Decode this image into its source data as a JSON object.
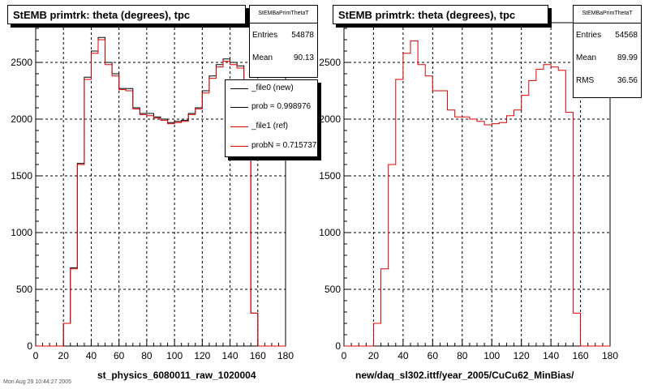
{
  "charts": [
    {
      "title": "StEMB primtrk: theta (degrees), tpc",
      "xlabel": "st_physics_6080011_raw_1020004",
      "stats": {
        "name": "StEMBaPrimThetaT",
        "rows": [
          {
            "key": "Entries",
            "value": "54878"
          },
          {
            "key": "Mean",
            "value": "90.13"
          }
        ]
      },
      "legend": [
        {
          "label": "_file0 (new)",
          "color": "#000000"
        },
        {
          "label": "prob = 0.998976",
          "color": "#000000"
        },
        {
          "label": "_file1 (ref)",
          "color": "#dd0000"
        },
        {
          "label": "probN = 0.715737",
          "color": "#dd0000"
        }
      ]
    },
    {
      "title": "StEMB primtrk: theta (degrees), tpc",
      "xlabel": "new/daq_sl302.ittf/year_2005/CuCu62_MinBias/",
      "stats": {
        "name": "StEMBaPrimThetaT",
        "rows": [
          {
            "key": "Entries",
            "value": "54568"
          },
          {
            "key": "Mean",
            "value": "89.99"
          },
          {
            "key": "RMS",
            "value": "36.56"
          }
        ]
      },
      "legend": []
    }
  ],
  "footer": "Mon Aug 29 10:44:27 2005",
  "colors": {
    "new": "#000000",
    "ref": "#dd0000",
    "grid": "#000000"
  },
  "chart_data": [
    {
      "type": "line",
      "title": "StEMB primtrk: theta (degrees), tpc",
      "xlabel": "st_physics_6080011_raw_1020004",
      "ylabel": "",
      "xlim": [
        0,
        180
      ],
      "ylim": [
        0,
        2850
      ],
      "xticks": [
        0,
        20,
        40,
        60,
        80,
        100,
        120,
        140,
        160,
        180
      ],
      "yticks": [
        0,
        500,
        1000,
        1500,
        2000,
        2500
      ],
      "grid": true,
      "legend_position": "top-right",
      "bin_width": 5,
      "x": [
        2.5,
        7.5,
        12.5,
        17.5,
        22.5,
        27.5,
        32.5,
        37.5,
        42.5,
        47.5,
        52.5,
        57.5,
        62.5,
        67.5,
        72.5,
        77.5,
        82.5,
        87.5,
        92.5,
        97.5,
        102.5,
        107.5,
        112.5,
        117.5,
        122.5,
        127.5,
        132.5,
        137.5,
        142.5,
        147.5,
        152.5,
        157.5,
        162.5,
        167.5,
        172.5,
        177.5
      ],
      "series": [
        {
          "name": "_file0 (new)",
          "values": [
            0,
            0,
            0,
            0,
            200,
            690,
            1610,
            2370,
            2600,
            2720,
            2500,
            2400,
            2270,
            2270,
            2100,
            2050,
            2050,
            2020,
            2000,
            1970,
            1980,
            1990,
            2050,
            2100,
            2250,
            2380,
            2480,
            2530,
            2500,
            2470,
            2100,
            290,
            0,
            0,
            0,
            0
          ]
        },
        {
          "name": "_file1 (ref)",
          "values": [
            0,
            0,
            0,
            0,
            200,
            680,
            1600,
            2350,
            2580,
            2700,
            2480,
            2380,
            2260,
            2250,
            2090,
            2040,
            2030,
            2010,
            1990,
            1960,
            1970,
            1980,
            2040,
            2090,
            2230,
            2360,
            2460,
            2510,
            2480,
            2450,
            2080,
            290,
            0,
            0,
            0,
            0
          ]
        }
      ]
    },
    {
      "type": "line",
      "title": "StEMB primtrk: theta (degrees), tpc",
      "xlabel": "new/daq_sl302.ittf/year_2005/CuCu62_MinBias/",
      "ylabel": "",
      "xlim": [
        0,
        180
      ],
      "ylim": [
        0,
        2850
      ],
      "xticks": [
        0,
        20,
        40,
        60,
        80,
        100,
        120,
        140,
        160,
        180
      ],
      "yticks": [
        0,
        500,
        1000,
        1500,
        2000,
        2500
      ],
      "grid": true,
      "bin_width": 5,
      "x": [
        2.5,
        7.5,
        12.5,
        17.5,
        22.5,
        27.5,
        32.5,
        37.5,
        42.5,
        47.5,
        52.5,
        57.5,
        62.5,
        67.5,
        72.5,
        77.5,
        82.5,
        87.5,
        92.5,
        97.5,
        102.5,
        107.5,
        112.5,
        117.5,
        122.5,
        127.5,
        132.5,
        137.5,
        142.5,
        147.5,
        152.5,
        157.5,
        162.5,
        167.5,
        172.5,
        177.5
      ],
      "series": [
        {
          "name": "",
          "values": [
            0,
            0,
            0,
            0,
            200,
            680,
            1600,
            2350,
            2580,
            2690,
            2480,
            2380,
            2250,
            2250,
            2080,
            2020,
            2020,
            2000,
            1980,
            1950,
            1960,
            1970,
            2030,
            2080,
            2210,
            2340,
            2440,
            2480,
            2460,
            2430,
            2060,
            290,
            0,
            0,
            0,
            0
          ]
        }
      ]
    }
  ]
}
